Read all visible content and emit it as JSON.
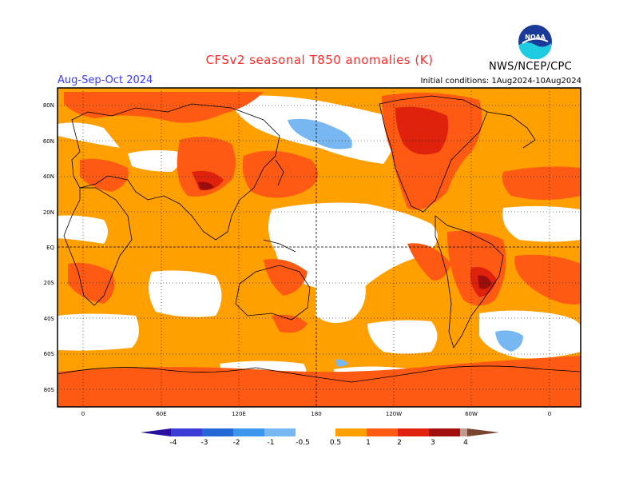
{
  "header": {
    "title": "CFSv2 seasonal T850 anomalies (K)",
    "season": "Aug-Sep-Oct 2024",
    "initial_conditions": "Initial conditions: 1Aug2024-10Aug2024",
    "agency": "NWS/NCEP/CPC",
    "logo_text": "NOAA"
  },
  "axes": {
    "lat_labels": [
      "80N",
      "60N",
      "40N",
      "20N",
      "EQ",
      "20S",
      "40S",
      "60S",
      "80S"
    ],
    "lon_labels": [
      "0",
      "60E",
      "120E",
      "180",
      "120W",
      "60W",
      "0"
    ]
  },
  "colorbar": {
    "labels": [
      "-4",
      "-3",
      "-2",
      "-1",
      "-0.5",
      "0.5",
      "1",
      "2",
      "3",
      "4"
    ],
    "colors": [
      "#2a0fa0",
      "#3c3cd6",
      "#2468d6",
      "#3c96ee",
      "#78b8f2",
      "#ffffff",
      "#ff9f00",
      "#ff5a14",
      "#e0220c",
      "#a30e0e",
      "#c09a8e",
      "#7a4630"
    ]
  },
  "map_colors": {
    "warm_05": "#ff9f00",
    "warm_1": "#ff5a14",
    "warm_2": "#e0220c",
    "warm_3": "#9c0d0d",
    "cool_05": "#78b8f2"
  }
}
